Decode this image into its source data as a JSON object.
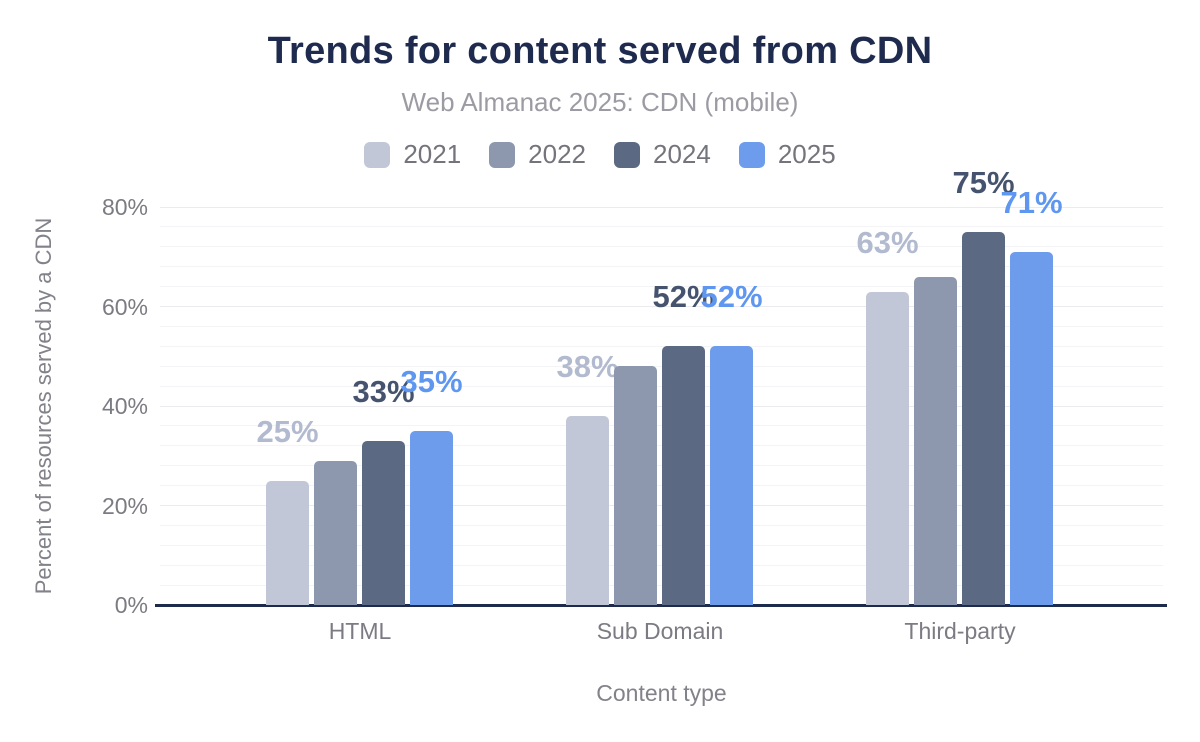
{
  "chart_data": {
    "type": "bar",
    "title": "Trends for content served from CDN",
    "subtitle": "Web Almanac 2025: CDN (mobile)",
    "xlabel": "Content type",
    "ylabel": "Percent of resources served by a CDN",
    "categories": [
      "HTML",
      "Sub Domain",
      "Third-party"
    ],
    "series": [
      {
        "name": "2021",
        "color": "#c1c7d6",
        "label_color": "#b2bacf",
        "values": [
          25,
          38,
          63
        ],
        "labels": [
          "25%",
          "38%",
          "63%"
        ]
      },
      {
        "name": "2022",
        "color": "#8d98ae",
        "label_color": "#8d98ae",
        "values": [
          29,
          48,
          66
        ],
        "labels": [
          null,
          null,
          null
        ]
      },
      {
        "name": "2024",
        "color": "#5b6983",
        "label_color": "#46536e",
        "values": [
          33,
          52,
          75
        ],
        "labels": [
          "33%",
          "52%",
          "75%"
        ]
      },
      {
        "name": "2025",
        "color": "#6c9ceb",
        "label_color": "#5e96f0",
        "values": [
          35,
          52,
          71
        ],
        "labels": [
          "35%",
          "52%",
          "71%"
        ]
      }
    ],
    "ylim": [
      0,
      80
    ],
    "yticks": [
      {
        "value": 0,
        "label": "0%"
      },
      {
        "value": 20,
        "label": "20%"
      },
      {
        "value": 40,
        "label": "40%"
      },
      {
        "value": 60,
        "label": "60%"
      },
      {
        "value": 80,
        "label": "80%"
      }
    ],
    "minor_grid_step": 4,
    "major_grid_step": 20,
    "grid": true,
    "legend_position": "top"
  },
  "theme": {
    "background": "#ffffff",
    "title_color": "#1f2b4e",
    "subtitle_color": "#9b9ba3",
    "legend_text_color": "#74747c",
    "axis_text_color": "#7b7b83",
    "axis_title_color": "#82828a",
    "grid_minor": "#f4f4f7",
    "grid_major": "#eaeaef",
    "baseline_color": "#1e2b4d"
  }
}
